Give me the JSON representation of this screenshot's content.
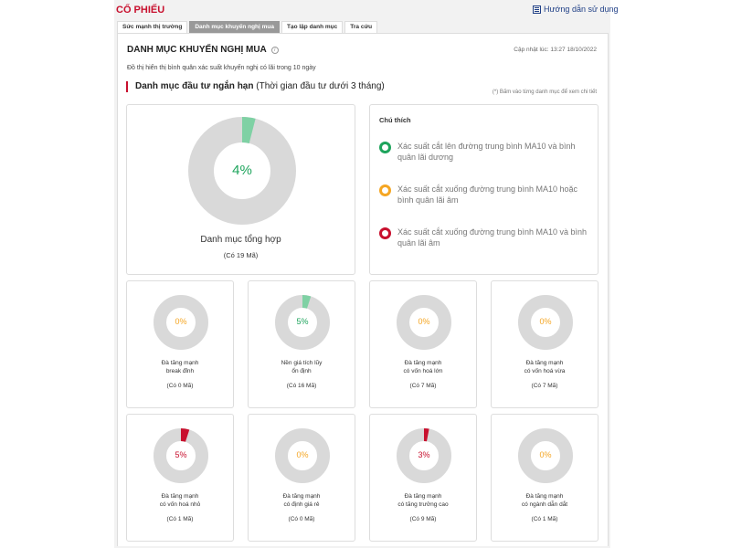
{
  "header": {
    "brand": "CỔ PHIẾU",
    "guide_label": "Hướng dẫn sử dụng",
    "guide_icon": "book-icon"
  },
  "tabs": [
    {
      "label": "Sức mạnh thị trường",
      "active": false
    },
    {
      "label": "Danh mục khuyến nghị mua",
      "active": true
    },
    {
      "label": "Tạo lập danh mục",
      "active": false
    },
    {
      "label": "Tra cứu",
      "active": false
    }
  ],
  "panel": {
    "title": "DANH MỤC KHUYẾN NGHỊ MUA",
    "info_icon": "info-icon",
    "updated": "Cập nhật lúc: 13:27 18/10/2022",
    "description": "Đồ thị hiển thị bình quân xác suất khuyến nghị có lãi trong 10 ngày",
    "section_title": "Danh mục đầu tư ngắn hạn",
    "section_subtitle": "(Thời gian đầu tư dưới 3 tháng)",
    "hint": "(*) Bấm vào từng danh mục để xem chi tiết"
  },
  "colors": {
    "green": "#1ea45c",
    "green_light": "#7fd1a4",
    "orange": "#f5a623",
    "red": "#c8102e",
    "grey": "#d9d9d9"
  },
  "summary": {
    "percent": "4%",
    "value": 4,
    "name": "Danh mục tổng hợp",
    "count": "(Có 19 Mã)",
    "status": "green"
  },
  "legend": {
    "title": "Chú thích",
    "items": [
      {
        "text": "Xác suất cắt lên đường trung bình MA10 và bình quân lãi dương",
        "status": "green"
      },
      {
        "text": "Xác suất cắt xuống đường trung bình MA10 hoặc bình quân lãi âm",
        "status": "orange"
      },
      {
        "text": "Xác suất cắt xuống đường trung bình MA10 và bình quân lãi âm",
        "status": "red"
      }
    ]
  },
  "categories": [
    {
      "line1": "Đà tăng mạnh",
      "line2": "break đỉnh",
      "count": "(Có 0 Mã)",
      "percent": "0%",
      "value": 0,
      "status": "orange"
    },
    {
      "line1": "Nền giá tích lũy",
      "line2": "ổn định",
      "count": "(Có 16 Mã)",
      "percent": "5%",
      "value": 5,
      "status": "green"
    },
    {
      "line1": "Đà tăng mạnh",
      "line2": "có vốn hoá lớn",
      "count": "(Có 7 Mã)",
      "percent": "0%",
      "value": 0,
      "status": "orange"
    },
    {
      "line1": "Đà tăng mạnh",
      "line2": "có vốn hoá vừa",
      "count": "(Có 7 Mã)",
      "percent": "0%",
      "value": 0,
      "status": "orange"
    },
    {
      "line1": "Đà tăng mạnh",
      "line2": "có vốn hoá nhỏ",
      "count": "(Có 1 Mã)",
      "percent": "5%",
      "value": 5,
      "status": "red"
    },
    {
      "line1": "Đà tăng mạnh",
      "line2": "có định giá rẻ",
      "count": "(Có 0 Mã)",
      "percent": "0%",
      "value": 0,
      "status": "orange"
    },
    {
      "line1": "Đà tăng mạnh",
      "line2": "có tăng trưởng cao",
      "count": "(Có 9 Mã)",
      "percent": "3%",
      "value": 3,
      "status": "red"
    },
    {
      "line1": "Đà tăng mạnh",
      "line2": "có ngành dẫn dắt",
      "count": "(Có 1 Mã)",
      "percent": "0%",
      "value": 0,
      "status": "orange"
    }
  ]
}
